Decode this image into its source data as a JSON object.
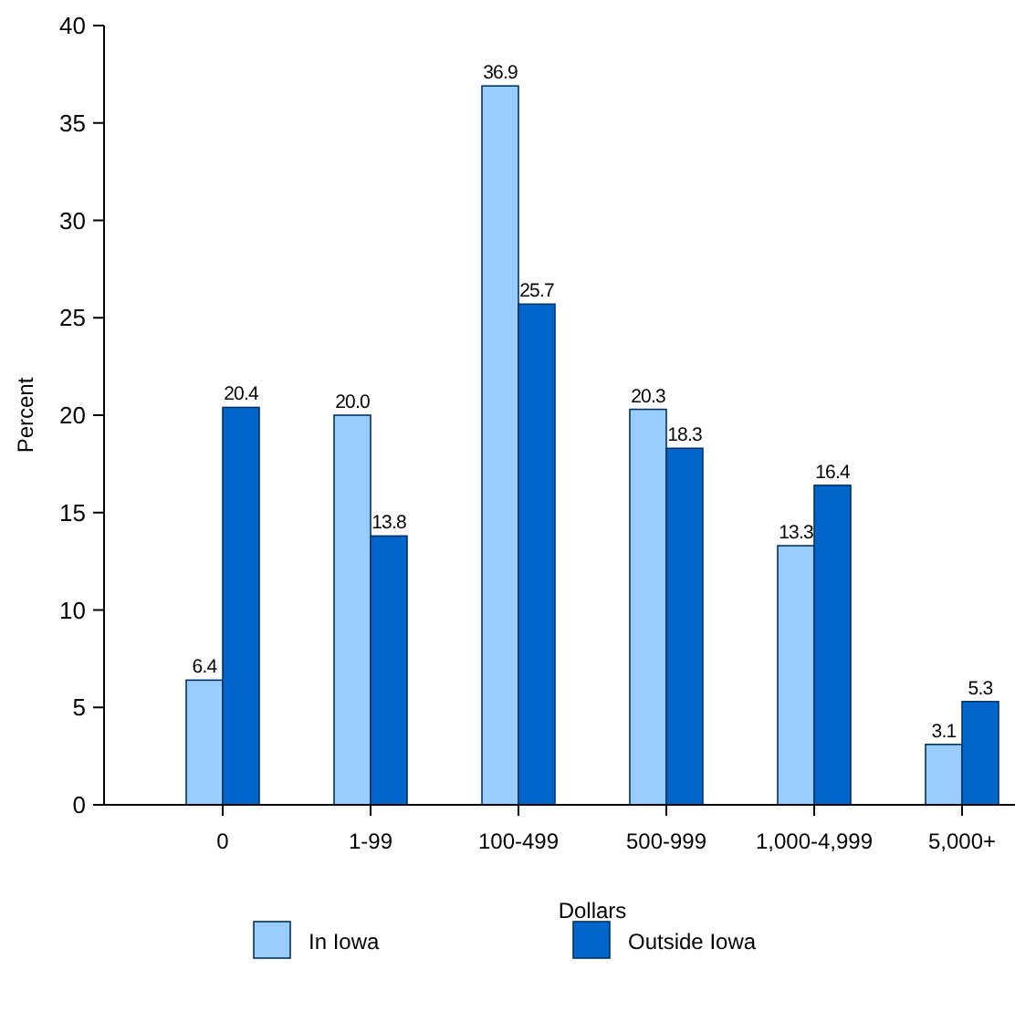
{
  "chart_data": {
    "type": "bar",
    "xlabel": "Dollars",
    "ylabel": "Percent",
    "categories": [
      "0",
      "1-99",
      "100-499",
      "500-999",
      "1,000-4,999",
      "5,000+"
    ],
    "series": [
      {
        "name": "In Iowa",
        "color": "#99ccff",
        "values": [
          6.4,
          20.0,
          36.9,
          20.3,
          13.3,
          3.1
        ],
        "value_labels": [
          "6.4",
          "20.0",
          "36.9",
          "20.3",
          "13.3",
          "3.1"
        ]
      },
      {
        "name": "Outside Iowa",
        "color": "#0066cc",
        "values": [
          20.4,
          13.8,
          25.7,
          18.3,
          16.4,
          5.3
        ],
        "value_labels": [
          "20.4",
          "13.8",
          "25.7",
          "18.3",
          "16.4",
          "5.3"
        ]
      }
    ],
    "ylim": [
      0,
      40
    ],
    "yticks": [
      0,
      5,
      10,
      15,
      20,
      25,
      30,
      35,
      40
    ],
    "grid": false,
    "legend": "bottom"
  }
}
